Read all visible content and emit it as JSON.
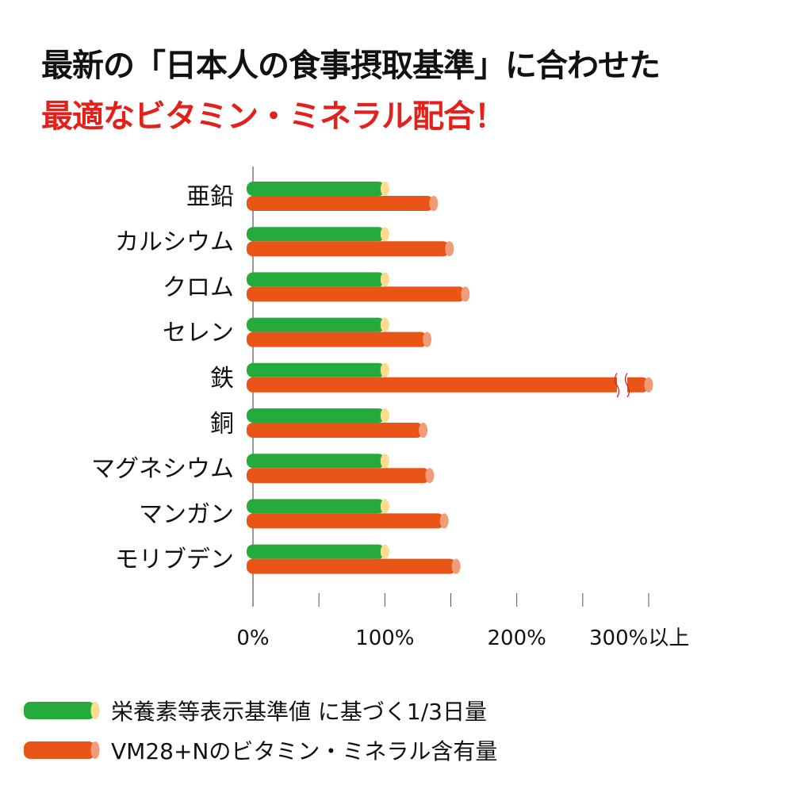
{
  "title_line1": "最新の「日本人の食事摂取基準」に合わせた",
  "title_line2": "最適なビタミン・ミネラル配合！",
  "chart_data": {
    "type": "bar",
    "orientation": "horizontal",
    "categories": [
      "亜鉛",
      "カルシウム",
      "クロム",
      "セレン",
      "鉄",
      "銅",
      "マグネシウム",
      "マンガン",
      "モリブデン"
    ],
    "series": [
      {
        "name": "栄養素等表示基準値 に基づく1/3日量",
        "color": "#25ab3c",
        "cap_color": "#fddc8e",
        "values": [
          100,
          100,
          100,
          100,
          100,
          100,
          100,
          100,
          100
        ]
      },
      {
        "name": "VM28+Nのビタミン・ミネラル含有量",
        "color": "#e95516",
        "cap_color": "#f19c78",
        "values": [
          137,
          149,
          161,
          132,
          300,
          129,
          134,
          145,
          154
        ]
      }
    ],
    "broken_bar_categories": [
      "鉄"
    ],
    "xlim": [
      0,
      300
    ],
    "xticks": [
      0,
      100,
      200,
      300
    ],
    "xtick_labels": [
      "0%",
      "100%",
      "200%",
      "300%以上"
    ],
    "legend_position": "bottom-left"
  }
}
